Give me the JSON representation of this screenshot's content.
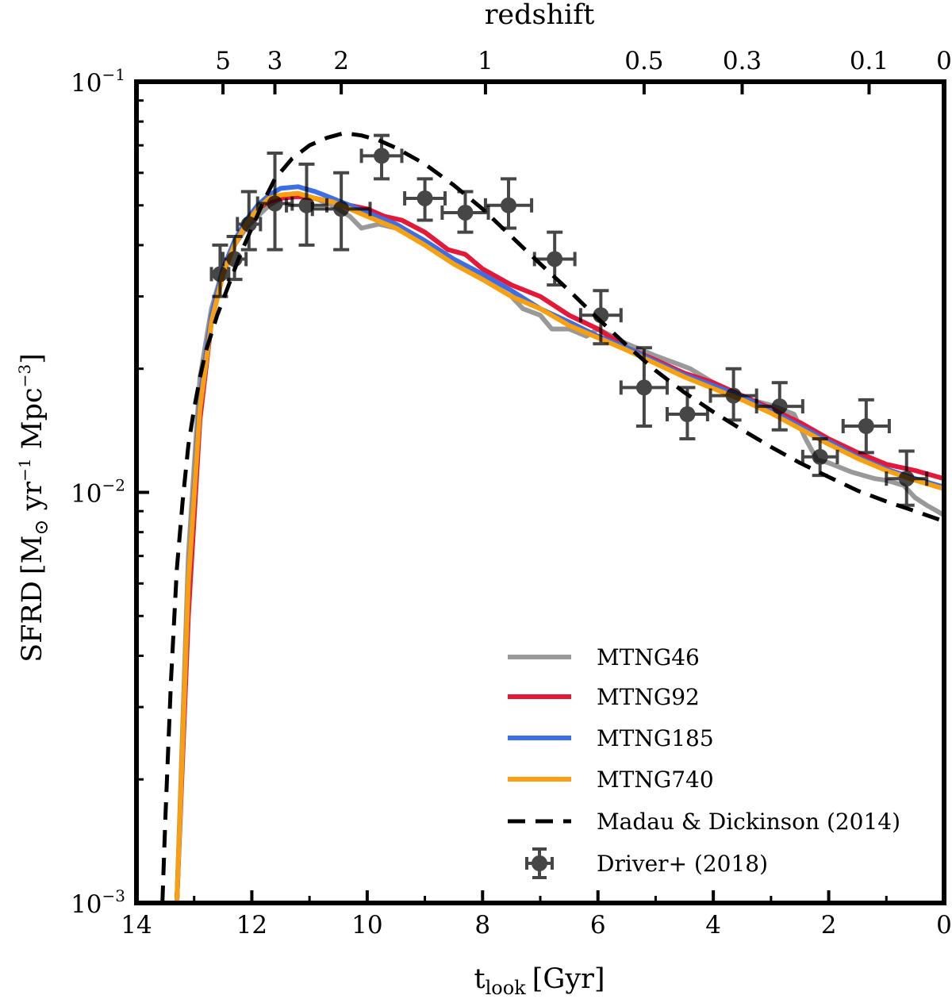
{
  "chart_data": {
    "type": "line",
    "xlabel": "t",
    "xlabel_sub": "look",
    "xlabel_unit": "[Gyr]",
    "top_xlabel": "redshift",
    "ylabel": "SFRD",
    "ylabel_unit_parts": [
      "[M",
      "⊙",
      " yr",
      "−1",
      " Mpc",
      "−3",
      "]"
    ],
    "x_range": [
      14,
      0
    ],
    "y_scale": "log",
    "y_range": [
      0.001,
      0.1
    ],
    "x_ticks": [
      "14",
      "12",
      "10",
      "8",
      "6",
      "4",
      "2",
      "0"
    ],
    "x_tick_values": [
      14,
      12,
      10,
      8,
      6,
      4,
      2,
      0
    ],
    "y_ticks": [
      {
        "value": 0.1,
        "base": "10",
        "exp": "−1"
      },
      {
        "value": 0.01,
        "base": "10",
        "exp": "−2"
      },
      {
        "value": 0.001,
        "base": "10",
        "exp": "−3"
      }
    ],
    "redshift_ticks": [
      {
        "label": "5",
        "t": 12.5
      },
      {
        "label": "3",
        "t": 11.6
      },
      {
        "label": "2",
        "t": 10.45
      },
      {
        "label": "1",
        "t": 7.95
      },
      {
        "label": "0.5",
        "t": 5.2
      },
      {
        "label": "0.3",
        "t": 3.5
      },
      {
        "label": "0.1",
        "t": 1.3
      },
      {
        "label": "0",
        "t": 0
      }
    ],
    "series": [
      {
        "name": "MTNG46",
        "color": "#999999",
        "t": [
          13.3,
          13.1,
          12.9,
          12.7,
          12.5,
          12.3,
          12.1,
          11.9,
          11.7,
          11.5,
          11.2,
          10.9,
          10.6,
          10.3,
          10.1,
          9.8,
          9.5,
          9.0,
          8.5,
          8.0,
          7.5,
          7.3,
          7.0,
          6.8,
          6.5,
          6.2,
          6.0,
          5.5,
          5.0,
          4.6,
          4.4,
          4.0,
          3.5,
          3.0,
          2.6,
          2.4,
          2.2,
          2.0,
          1.6,
          1.2,
          1.0,
          0.7,
          0.5,
          0.3,
          0.0
        ],
        "sfrd": [
          0.001,
          0.007,
          0.019,
          0.028,
          0.035,
          0.04,
          0.044,
          0.047,
          0.05,
          0.052,
          0.053,
          0.052,
          0.05,
          0.047,
          0.044,
          0.045,
          0.044,
          0.04,
          0.036,
          0.033,
          0.03,
          0.028,
          0.027,
          0.025,
          0.025,
          0.024,
          0.025,
          0.023,
          0.0215,
          0.0205,
          0.02,
          0.0185,
          0.017,
          0.0163,
          0.0155,
          0.0135,
          0.012,
          0.0118,
          0.0112,
          0.0108,
          0.0107,
          0.0104,
          0.0097,
          0.0093,
          0.0088
        ]
      },
      {
        "name": "MTNG92",
        "color": "#e4193a",
        "t": [
          13.3,
          13.1,
          12.9,
          12.7,
          12.5,
          12.3,
          12.1,
          11.9,
          11.7,
          11.5,
          11.2,
          10.9,
          10.6,
          10.3,
          10.0,
          9.7,
          9.4,
          9.0,
          8.6,
          8.3,
          8.0,
          7.5,
          7.0,
          6.5,
          6.0,
          5.5,
          5.0,
          4.5,
          4.0,
          3.5,
          3.0,
          2.5,
          2.0,
          1.5,
          1.0,
          0.5,
          0.0
        ],
        "sfrd": [
          0.001,
          0.005,
          0.015,
          0.026,
          0.034,
          0.04,
          0.045,
          0.049,
          0.051,
          0.052,
          0.0525,
          0.052,
          0.051,
          0.05,
          0.049,
          0.047,
          0.046,
          0.043,
          0.039,
          0.038,
          0.035,
          0.032,
          0.03,
          0.027,
          0.025,
          0.0225,
          0.021,
          0.0195,
          0.0185,
          0.0172,
          0.016,
          0.0148,
          0.0135,
          0.0125,
          0.0117,
          0.0113,
          0.0108
        ]
      },
      {
        "name": "MTNG185",
        "color": "#3c6ee6",
        "t": [
          13.3,
          13.1,
          12.9,
          12.7,
          12.5,
          12.3,
          12.1,
          11.9,
          11.7,
          11.5,
          11.2,
          10.9,
          10.6,
          10.3,
          10.0,
          9.5,
          9.0,
          8.5,
          8.0,
          7.5,
          7.0,
          6.5,
          6.0,
          5.5,
          5.0,
          4.5,
          4.0,
          3.5,
          3.0,
          2.5,
          2.0,
          1.5,
          1.0,
          0.5,
          0.0
        ],
        "sfrd": [
          0.001,
          0.006,
          0.017,
          0.027,
          0.035,
          0.041,
          0.046,
          0.05,
          0.053,
          0.055,
          0.0555,
          0.054,
          0.052,
          0.05,
          0.048,
          0.045,
          0.041,
          0.037,
          0.034,
          0.031,
          0.028,
          0.026,
          0.024,
          0.0225,
          0.0208,
          0.0193,
          0.0182,
          0.0171,
          0.0158,
          0.0145,
          0.0133,
          0.0122,
          0.0114,
          0.0108,
          0.0103
        ]
      },
      {
        "name": "MTNG740",
        "color": "#f8a00f",
        "t": [
          13.3,
          13.1,
          12.9,
          12.7,
          12.5,
          12.3,
          12.1,
          11.9,
          11.7,
          11.5,
          11.2,
          10.9,
          10.6,
          10.3,
          10.0,
          9.5,
          9.0,
          8.5,
          8.0,
          7.5,
          7.0,
          6.5,
          6.0,
          5.5,
          5.0,
          4.5,
          4.0,
          3.5,
          3.0,
          2.5,
          2.0,
          1.5,
          1.0,
          0.5,
          0.0
        ],
        "sfrd": [
          0.001,
          0.006,
          0.016,
          0.026,
          0.034,
          0.04,
          0.045,
          0.049,
          0.052,
          0.053,
          0.0535,
          0.052,
          0.051,
          0.049,
          0.047,
          0.044,
          0.04,
          0.036,
          0.033,
          0.03,
          0.028,
          0.0255,
          0.0238,
          0.0222,
          0.0206,
          0.0191,
          0.0179,
          0.0168,
          0.0156,
          0.0143,
          0.0131,
          0.0121,
          0.0113,
          0.0107,
          0.0102
        ]
      },
      {
        "name": "Madau & Dickinson (2014)",
        "color": "#000000",
        "dashed": true,
        "t": [
          13.55,
          13.5,
          13.4,
          13.3,
          13.2,
          13.1,
          13.0,
          12.9,
          12.8,
          12.6,
          12.4,
          12.2,
          12.0,
          11.8,
          11.6,
          11.3,
          11.0,
          10.7,
          10.4,
          10.1,
          9.8,
          9.5,
          9.0,
          8.5,
          8.0,
          7.5,
          7.0,
          6.5,
          6.0,
          5.5,
          5.0,
          4.5,
          4.0,
          3.5,
          3.0,
          2.5,
          2.0,
          1.5,
          1.0,
          0.5,
          0.0
        ],
        "sfrd": [
          0.001,
          0.0016,
          0.0035,
          0.0065,
          0.0095,
          0.013,
          0.016,
          0.019,
          0.022,
          0.027,
          0.032,
          0.038,
          0.044,
          0.051,
          0.058,
          0.065,
          0.07,
          0.073,
          0.075,
          0.074,
          0.072,
          0.069,
          0.063,
          0.056,
          0.049,
          0.042,
          0.036,
          0.031,
          0.0265,
          0.0228,
          0.0198,
          0.0175,
          0.0157,
          0.0142,
          0.0129,
          0.0118,
          0.0109,
          0.0101,
          0.0095,
          0.009,
          0.0085
        ]
      }
    ],
    "points": {
      "name": "Driver+ (2018)",
      "color": "#000000",
      "data": [
        {
          "t": 12.55,
          "y": 0.034,
          "xerr": 0.15,
          "ylo": 0.03,
          "yhi": 0.04
        },
        {
          "t": 12.3,
          "y": 0.037,
          "xerr": 0.2,
          "ylo": 0.033,
          "yhi": 0.042
        },
        {
          "t": 12.05,
          "y": 0.045,
          "xerr": 0.2,
          "ylo": 0.039,
          "yhi": 0.054
        },
        {
          "t": 11.6,
          "y": 0.0505,
          "xerr": 0.3,
          "ylo": 0.039,
          "yhi": 0.067
        },
        {
          "t": 11.05,
          "y": 0.05,
          "xerr": 0.35,
          "ylo": 0.04,
          "yhi": 0.063
        },
        {
          "t": 10.45,
          "y": 0.049,
          "xerr": 0.5,
          "ylo": 0.039,
          "yhi": 0.06
        },
        {
          "t": 9.75,
          "y": 0.066,
          "xerr": 0.35,
          "ylo": 0.058,
          "yhi": 0.074
        },
        {
          "t": 9.0,
          "y": 0.052,
          "xerr": 0.35,
          "ylo": 0.046,
          "yhi": 0.058
        },
        {
          "t": 8.3,
          "y": 0.048,
          "xerr": 0.4,
          "ylo": 0.043,
          "yhi": 0.054
        },
        {
          "t": 7.55,
          "y": 0.05,
          "xerr": 0.4,
          "ylo": 0.044,
          "yhi": 0.058
        },
        {
          "t": 6.75,
          "y": 0.037,
          "xerr": 0.35,
          "ylo": 0.032,
          "yhi": 0.043
        },
        {
          "t": 5.95,
          "y": 0.027,
          "xerr": 0.35,
          "ylo": 0.023,
          "yhi": 0.031
        },
        {
          "t": 5.2,
          "y": 0.018,
          "xerr": 0.4,
          "ylo": 0.0145,
          "yhi": 0.0225
        },
        {
          "t": 4.45,
          "y": 0.0155,
          "xerr": 0.35,
          "ylo": 0.0135,
          "yhi": 0.018
        },
        {
          "t": 3.65,
          "y": 0.0172,
          "xerr": 0.4,
          "ylo": 0.015,
          "yhi": 0.02
        },
        {
          "t": 2.85,
          "y": 0.0162,
          "xerr": 0.4,
          "ylo": 0.0142,
          "yhi": 0.0185
        },
        {
          "t": 2.15,
          "y": 0.0122,
          "xerr": 0.3,
          "ylo": 0.011,
          "yhi": 0.0135
        },
        {
          "t": 1.35,
          "y": 0.0145,
          "xerr": 0.4,
          "ylo": 0.0125,
          "yhi": 0.0168
        },
        {
          "t": 0.65,
          "y": 0.0108,
          "xerr": 0.35,
          "ylo": 0.0093,
          "yhi": 0.0126
        }
      ]
    },
    "legend": {
      "position": "lower-right",
      "entries": [
        "MTNG46",
        "MTNG92",
        "MTNG185",
        "MTNG740",
        "Madau & Dickinson (2014)",
        "Driver+ (2018)"
      ]
    }
  }
}
